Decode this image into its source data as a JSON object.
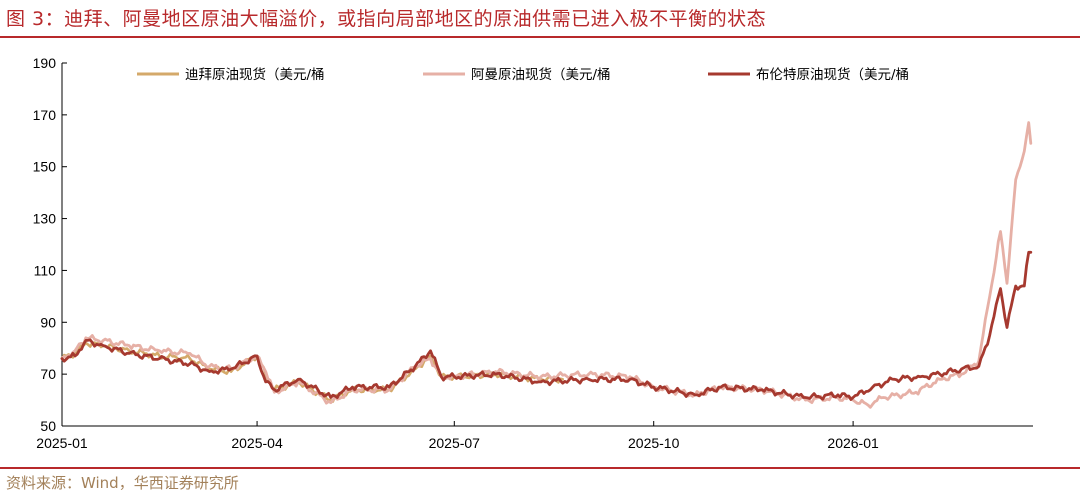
{
  "header": {
    "title": "图 3：迪拜、阿曼地区原油大幅溢价，或指向局部地区的原油供需已进入极不平衡的状态"
  },
  "footer": {
    "source": "资料来源：Wind，华西证券研究所"
  },
  "chart_data": {
    "type": "line",
    "title": "",
    "xlabel": "",
    "ylabel": "",
    "ylim": [
      50,
      190
    ],
    "yticks": [
      50,
      70,
      90,
      110,
      130,
      150,
      170,
      190
    ],
    "xlim": [
      "2025-01-01",
      "2026-03-25"
    ],
    "xticks": [
      {
        "date": "2025-01-01",
        "label": "2025-01"
      },
      {
        "date": "2025-04-01",
        "label": "2025-04"
      },
      {
        "date": "2025-07-01",
        "label": "2025-07"
      },
      {
        "date": "2025-10-01",
        "label": "2025-10"
      },
      {
        "date": "2026-01-01",
        "label": "2026-01"
      }
    ],
    "grid": false,
    "legend": "top-center",
    "series": [
      {
        "name": "迪拜原油现货（美元/桶",
        "color": "#d4a96a",
        "points": [
          [
            "2025-01-01",
            76
          ],
          [
            "2025-01-07",
            78
          ],
          [
            "2025-01-12",
            82
          ],
          [
            "2025-01-20",
            81
          ],
          [
            "2025-02-01",
            79
          ],
          [
            "2025-02-15",
            77
          ],
          [
            "2025-03-01",
            76
          ],
          [
            "2025-03-10",
            72
          ],
          [
            "2025-03-20",
            71
          ],
          [
            "2025-04-01",
            77
          ],
          [
            "2025-04-05",
            70
          ],
          [
            "2025-04-09",
            64
          ],
          [
            "2025-04-20",
            67
          ],
          [
            "2025-05-05",
            60
          ],
          [
            "2025-05-15",
            64
          ],
          [
            "2025-06-01",
            64
          ],
          [
            "2025-06-13",
            72
          ],
          [
            "2025-06-20",
            77
          ],
          [
            "2025-06-25",
            69
          ],
          [
            "2025-07-01",
            69
          ],
          [
            "2025-07-20",
            70
          ],
          [
            "2025-08-10",
            68
          ],
          [
            "2025-08-20",
            68
          ]
        ]
      },
      {
        "name": "阿曼原油现货（美元/桶",
        "color": "#e6b0a6",
        "points": [
          [
            "2025-01-01",
            76
          ],
          [
            "2025-01-07",
            79
          ],
          [
            "2025-01-12",
            84
          ],
          [
            "2025-01-20",
            83
          ],
          [
            "2025-02-01",
            81
          ],
          [
            "2025-02-15",
            79
          ],
          [
            "2025-03-01",
            78
          ],
          [
            "2025-03-10",
            73
          ],
          [
            "2025-03-20",
            72
          ],
          [
            "2025-04-01",
            77
          ],
          [
            "2025-04-05",
            71
          ],
          [
            "2025-04-09",
            63
          ],
          [
            "2025-04-20",
            67
          ],
          [
            "2025-05-05",
            59
          ],
          [
            "2025-05-15",
            64
          ],
          [
            "2025-06-01",
            64
          ],
          [
            "2025-06-13",
            73
          ],
          [
            "2025-06-20",
            76
          ],
          [
            "2025-06-25",
            69
          ],
          [
            "2025-07-01",
            69
          ],
          [
            "2025-07-20",
            71
          ],
          [
            "2025-08-10",
            69
          ],
          [
            "2025-09-01",
            70
          ],
          [
            "2025-09-20",
            69
          ],
          [
            "2025-10-01",
            65
          ],
          [
            "2025-10-20",
            62
          ],
          [
            "2025-11-01",
            65
          ],
          [
            "2025-11-20",
            64
          ],
          [
            "2025-12-10",
            60
          ],
          [
            "2025-12-25",
            61
          ],
          [
            "2026-01-01",
            60
          ],
          [
            "2026-01-08",
            58
          ],
          [
            "2026-01-15",
            61
          ],
          [
            "2026-01-30",
            63
          ],
          [
            "2026-02-10",
            68
          ],
          [
            "2026-02-20",
            70
          ],
          [
            "2026-02-28",
            75
          ],
          [
            "2026-03-05",
            100
          ],
          [
            "2026-03-10",
            125
          ],
          [
            "2026-03-13",
            105
          ],
          [
            "2026-03-17",
            145
          ],
          [
            "2026-03-21",
            156
          ],
          [
            "2026-03-23",
            167
          ],
          [
            "2026-03-24",
            159
          ]
        ]
      },
      {
        "name": "布伦特原油现货（美元/桶",
        "color": "#a6392f",
        "points": [
          [
            "2025-01-01",
            76
          ],
          [
            "2025-01-07",
            77
          ],
          [
            "2025-01-12",
            83
          ],
          [
            "2025-01-20",
            81
          ],
          [
            "2025-02-01",
            78
          ],
          [
            "2025-02-15",
            76
          ],
          [
            "2025-03-01",
            74
          ],
          [
            "2025-03-10",
            71
          ],
          [
            "2025-03-20",
            72
          ],
          [
            "2025-04-01",
            77
          ],
          [
            "2025-04-05",
            67
          ],
          [
            "2025-04-09",
            64
          ],
          [
            "2025-04-20",
            68
          ],
          [
            "2025-05-05",
            61
          ],
          [
            "2025-05-15",
            65
          ],
          [
            "2025-06-01",
            65
          ],
          [
            "2025-06-13",
            73
          ],
          [
            "2025-06-20",
            79
          ],
          [
            "2025-06-25",
            69
          ],
          [
            "2025-07-01",
            69
          ],
          [
            "2025-07-20",
            70
          ],
          [
            "2025-08-10",
            67
          ],
          [
            "2025-09-01",
            68
          ],
          [
            "2025-09-20",
            68
          ],
          [
            "2025-10-01",
            65
          ],
          [
            "2025-10-20",
            62
          ],
          [
            "2025-11-01",
            65
          ],
          [
            "2025-11-20",
            64
          ],
          [
            "2025-12-10",
            61
          ],
          [
            "2025-12-25",
            62
          ],
          [
            "2026-01-01",
            61
          ],
          [
            "2026-01-10",
            65
          ],
          [
            "2026-01-20",
            68
          ],
          [
            "2026-02-01",
            69
          ],
          [
            "2026-02-10",
            70
          ],
          [
            "2026-02-20",
            72
          ],
          [
            "2026-02-28",
            73
          ],
          [
            "2026-03-05",
            85
          ],
          [
            "2026-03-10",
            103
          ],
          [
            "2026-03-13",
            88
          ],
          [
            "2026-03-17",
            104
          ],
          [
            "2026-03-21",
            104
          ],
          [
            "2026-03-23",
            117
          ],
          [
            "2026-03-24",
            117
          ]
        ]
      }
    ]
  }
}
